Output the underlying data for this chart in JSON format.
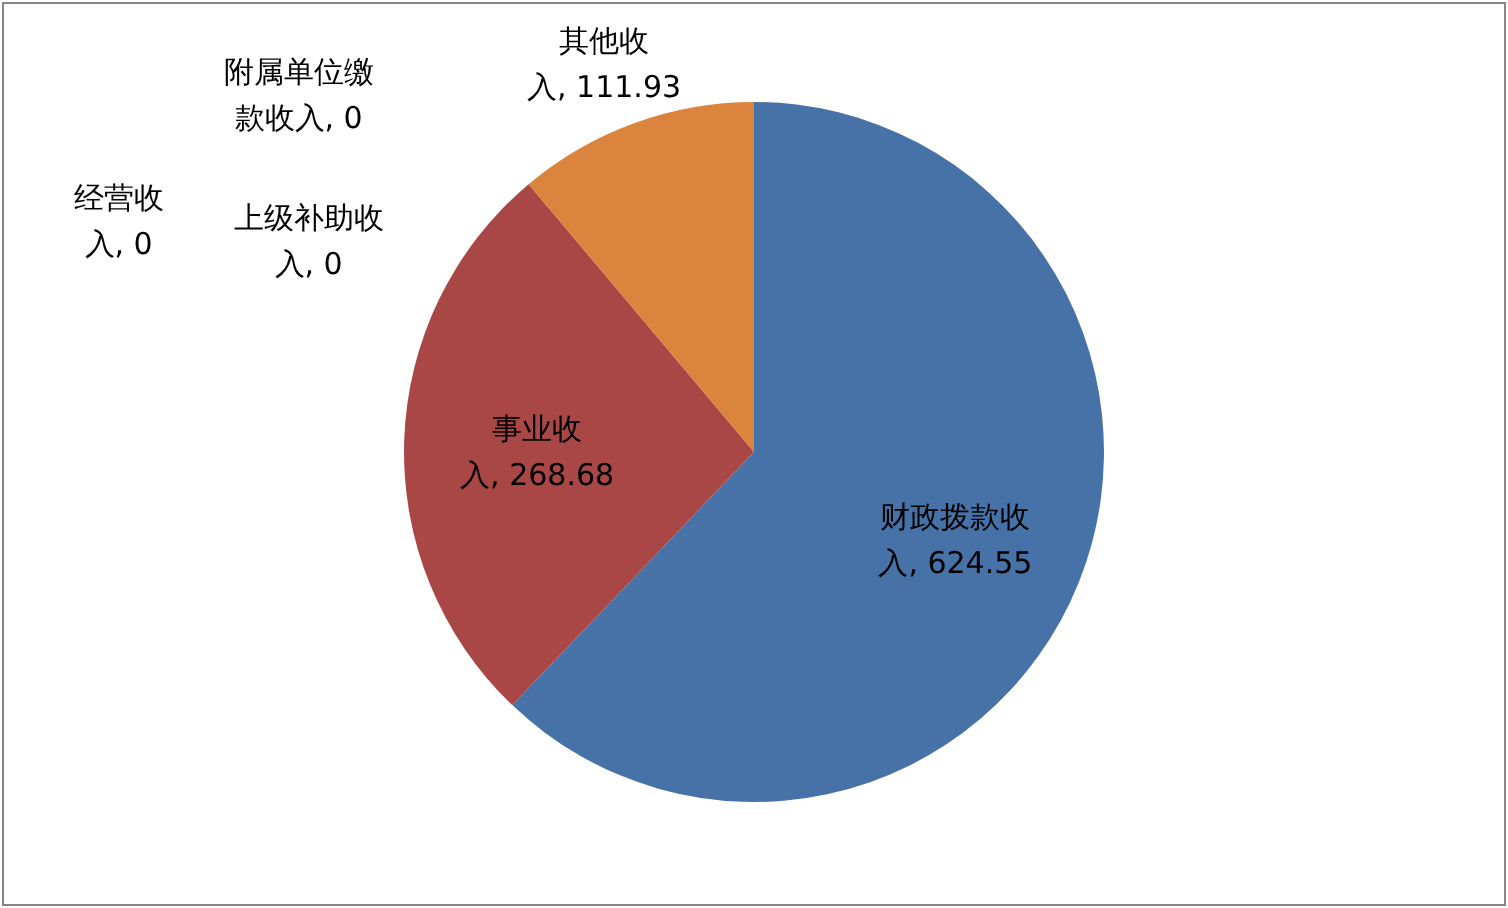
{
  "chart_data": {
    "type": "pie",
    "categories": [
      "财政拨款收入",
      "事业收入",
      "上级补助收入",
      "经营收入",
      "附属单位缴款收入",
      "其他收入"
    ],
    "values": [
      624.55,
      268.68,
      0,
      0,
      0,
      111.93
    ],
    "colors": [
      "#4672a8",
      "#a84745",
      "#89a54e",
      "#71588f",
      "#4198af",
      "#db843d"
    ],
    "value_labels": [
      ", 624.55",
      ", 268.68",
      ", 0",
      ", 0",
      ", 0",
      ", 111.93"
    ]
  }
}
